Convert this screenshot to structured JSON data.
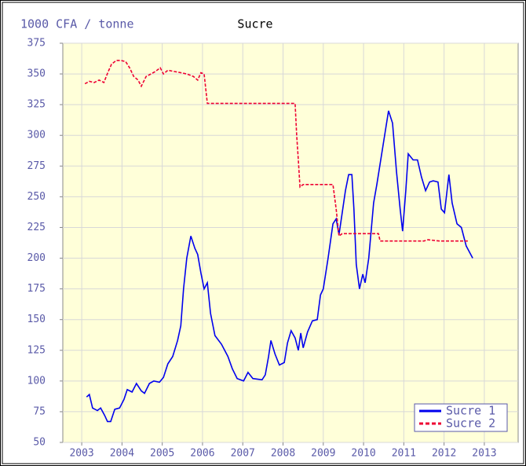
{
  "chart_data": {
    "type": "line",
    "title": "Sucre",
    "y_label": "1000 CFA / tonne",
    "xlim": [
      2002.53,
      2013.84
    ],
    "ylim": [
      50,
      375
    ],
    "xticks": [
      2003,
      2004,
      2005,
      2006,
      2007,
      2008,
      2009,
      2010,
      2011,
      2012,
      2013
    ],
    "yticks": [
      50,
      75,
      100,
      125,
      150,
      175,
      200,
      225,
      250,
      275,
      300,
      325,
      350,
      375
    ],
    "grid": true,
    "legend": "lower right",
    "series": [
      {
        "name": "Sucre 1",
        "color": "#0000ee",
        "dashed": false,
        "x": [
          2003.12,
          2003.19,
          2003.27,
          2003.39,
          2003.47,
          2003.57,
          2003.64,
          2003.72,
          2003.82,
          2003.94,
          2004.05,
          2004.13,
          2004.25,
          2004.36,
          2004.48,
          2004.56,
          2004.68,
          2004.79,
          2004.93,
          2005.03,
          2005.14,
          2005.26,
          2005.38,
          2005.46,
          2005.53,
          2005.61,
          2005.71,
          2005.81,
          2005.88,
          2005.96,
          2006.04,
          2006.12,
          2006.2,
          2006.31,
          2006.47,
          2006.63,
          2006.74,
          2006.86,
          2007.02,
          2007.13,
          2007.25,
          2007.48,
          2007.56,
          2007.64,
          2007.7,
          2007.8,
          2007.91,
          2008.03,
          2008.11,
          2008.2,
          2008.3,
          2008.38,
          2008.44,
          2008.5,
          2008.61,
          2008.73,
          2008.85,
          2008.93,
          2009.0,
          2009.12,
          2009.24,
          2009.32,
          2009.39,
          2009.47,
          2009.55,
          2009.63,
          2009.71,
          2009.76,
          2009.82,
          2009.9,
          2009.98,
          2010.04,
          2010.13,
          2010.25,
          2010.33,
          2010.45,
          2010.62,
          2010.72,
          2010.82,
          2010.91,
          2010.97,
          2011.05,
          2011.11,
          2011.23,
          2011.34,
          2011.44,
          2011.54,
          2011.64,
          2011.73,
          2011.85,
          2011.93,
          2012.01,
          2012.12,
          2012.2,
          2012.32,
          2012.43,
          2012.55,
          2012.71
        ],
        "values": [
          87,
          89,
          78,
          76,
          78,
          72,
          67,
          67,
          77,
          78,
          85,
          93,
          91,
          98,
          92,
          90,
          98,
          100,
          99,
          103,
          114,
          120,
          133,
          145,
          175,
          200,
          218,
          208,
          203,
          188,
          175,
          180,
          155,
          137,
          130,
          120,
          110,
          102,
          100,
          107,
          102,
          101,
          105,
          120,
          133,
          122,
          113,
          115,
          131,
          141,
          135,
          125,
          139,
          127,
          140,
          149,
          150,
          170,
          175,
          200,
          228,
          232,
          219,
          237,
          255,
          268,
          268,
          240,
          195,
          175,
          187,
          180,
          200,
          245,
          260,
          285,
          320,
          310,
          270,
          240,
          222,
          255,
          285,
          280,
          280,
          266,
          255,
          262,
          263,
          262,
          240,
          237,
          268,
          245,
          228,
          225,
          210,
          200
        ]
      },
      {
        "name": "Sucre 2",
        "color": "#ee0033",
        "dashed": true,
        "x": [
          2003.08,
          2003.19,
          2003.31,
          2003.43,
          2003.55,
          2003.66,
          2003.74,
          2003.86,
          2003.97,
          2004.09,
          2004.19,
          2004.29,
          2004.4,
          2004.48,
          2004.6,
          2004.72,
          2004.83,
          2004.95,
          2005.03,
          2005.14,
          2005.3,
          2005.46,
          2005.61,
          2005.77,
          2005.88,
          2005.96,
          2006.04,
          2006.12,
          2008.3,
          2008.34,
          2008.38,
          2008.42,
          2008.5,
          2009.24,
          2009.32,
          2009.39,
          2009.47,
          2010.37,
          2010.41,
          2011.5,
          2011.6,
          2011.89,
          2012.59
        ],
        "values": [
          342,
          344,
          343,
          345,
          343,
          352,
          358,
          361,
          361,
          360,
          355,
          348,
          345,
          340,
          348,
          350,
          352,
          355,
          350,
          353,
          352,
          351,
          350,
          348,
          345,
          351,
          350,
          326,
          326,
          300,
          280,
          258,
          260,
          260,
          240,
          218,
          220,
          220,
          214,
          214,
          215,
          214,
          214
        ]
      }
    ]
  }
}
